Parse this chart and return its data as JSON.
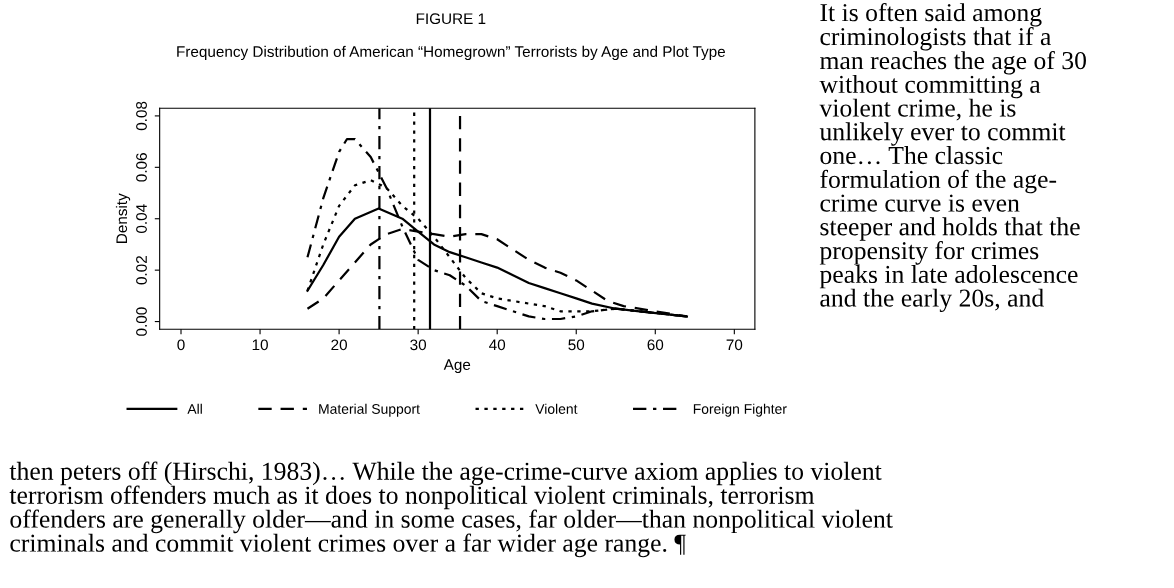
{
  "chart_data": {
    "type": "line",
    "title": "FIGURE 1",
    "subtitle": "Frequency Distribution of American “Homegrown” Terrorists by Age and Plot Type",
    "xlabel": "Age",
    "ylabel": "Density",
    "xlim": [
      -2.7,
      72.6
    ],
    "xticks": [
      0,
      10,
      20,
      30,
      40,
      50,
      60,
      70
    ],
    "ylim": [
      -0.003,
      0.083
    ],
    "yticks": [
      {
        "value": 0,
        "label": "0.00"
      },
      {
        "value": 0.02,
        "label": "0.02"
      },
      {
        "value": 0.04,
        "label": "0.04"
      },
      {
        "value": 0.06,
        "label": "0.06"
      },
      {
        "value": 0.08,
        "label": "0.08"
      }
    ],
    "grid": false,
    "legend": "bottom",
    "marker": "none",
    "series": [
      {
        "name": "All",
        "color": "#000000",
        "line_style": "solid",
        "x": [
          16,
          18,
          20,
          22,
          25,
          28,
          30,
          32,
          34,
          36,
          38,
          40,
          42,
          44,
          46,
          48,
          50,
          52,
          55,
          58,
          61,
          64
        ],
        "values": [
          0.012,
          0.022,
          0.033,
          0.04,
          0.044,
          0.04,
          0.035,
          0.03,
          0.027,
          0.025,
          0.023,
          0.021,
          0.018,
          0.015,
          0.013,
          0.011,
          0.009,
          0.007,
          0.005,
          0.004,
          0.003,
          0.002
        ]
      },
      {
        "name": "Material Support",
        "color": "#000000",
        "line_style": "dashed",
        "x": [
          16,
          18,
          20,
          22,
          24,
          26,
          28,
          30,
          32,
          34,
          36,
          38,
          40,
          42,
          44,
          46,
          48,
          50,
          52,
          54,
          56,
          60,
          64
        ],
        "values": [
          0.005,
          0.009,
          0.016,
          0.023,
          0.03,
          0.034,
          0.036,
          0.035,
          0.034,
          0.033,
          0.034,
          0.034,
          0.032,
          0.028,
          0.024,
          0.021,
          0.019,
          0.016,
          0.012,
          0.008,
          0.006,
          0.004,
          0.002
        ]
      },
      {
        "name": "Violent",
        "color": "#000000",
        "line_style": "dotted",
        "x": [
          16,
          18,
          20,
          22,
          24,
          26,
          28,
          30,
          32,
          34,
          36,
          38,
          40,
          42,
          44,
          46,
          48,
          50,
          52,
          55,
          58,
          61,
          64
        ],
        "values": [
          0.012,
          0.03,
          0.045,
          0.053,
          0.055,
          0.052,
          0.045,
          0.04,
          0.033,
          0.025,
          0.017,
          0.011,
          0.009,
          0.008,
          0.007,
          0.006,
          0.004,
          0.004,
          0.004,
          0.005,
          0.004,
          0.003,
          0.002
        ]
      },
      {
        "name": "Foreign Fighter",
        "color": "#000000",
        "line_style": "dashdot",
        "x": [
          16,
          18,
          20,
          21,
          22,
          24,
          26,
          28,
          30,
          32,
          34,
          36,
          38,
          40,
          42,
          44,
          46,
          48,
          50,
          52,
          55,
          58,
          61,
          64
        ],
        "values": [
          0.025,
          0.048,
          0.066,
          0.071,
          0.071,
          0.064,
          0.052,
          0.037,
          0.024,
          0.02,
          0.018,
          0.014,
          0.008,
          0.006,
          0.004,
          0.002,
          0.001,
          0.001,
          0.002,
          0.004,
          0.005,
          0.004,
          0.003,
          0.002
        ]
      }
    ],
    "ref_lines": [
      {
        "axis": "x",
        "value": 25.1,
        "color": "#000000",
        "line_style": "dashdot"
      },
      {
        "axis": "x",
        "value": 29.5,
        "color": "#000000",
        "line_style": "dotted"
      },
      {
        "axis": "x",
        "value": 31.5,
        "color": "#000000",
        "line_style": "solid"
      },
      {
        "axis": "x",
        "value": 35.3,
        "color": "#000000",
        "line_style": "dashed"
      }
    ],
    "annotations": [
      "It is often said among\ncriminologists that if a\nman reaches the age of 30\nwithout committing a\nviolent crime, he is\nunlikely ever to commit\none… The classic\nformulation of the age-\ncrime curve is even\nsteeper and holds that the\npropensity for crimes\npeaks in late adolescence\nand the early 20s, and",
      "then peters off (Hirschi, 1983)… While the age-crime-curve axiom applies to violent\nterrorism offenders much as it does to nonpolitical violent criminals, terrorism\noffenders are generally older—and in some cases, far older—than nonpolitical violent\ncriminals and commit violent crimes over a far wider age range. ¶"
    ]
  }
}
